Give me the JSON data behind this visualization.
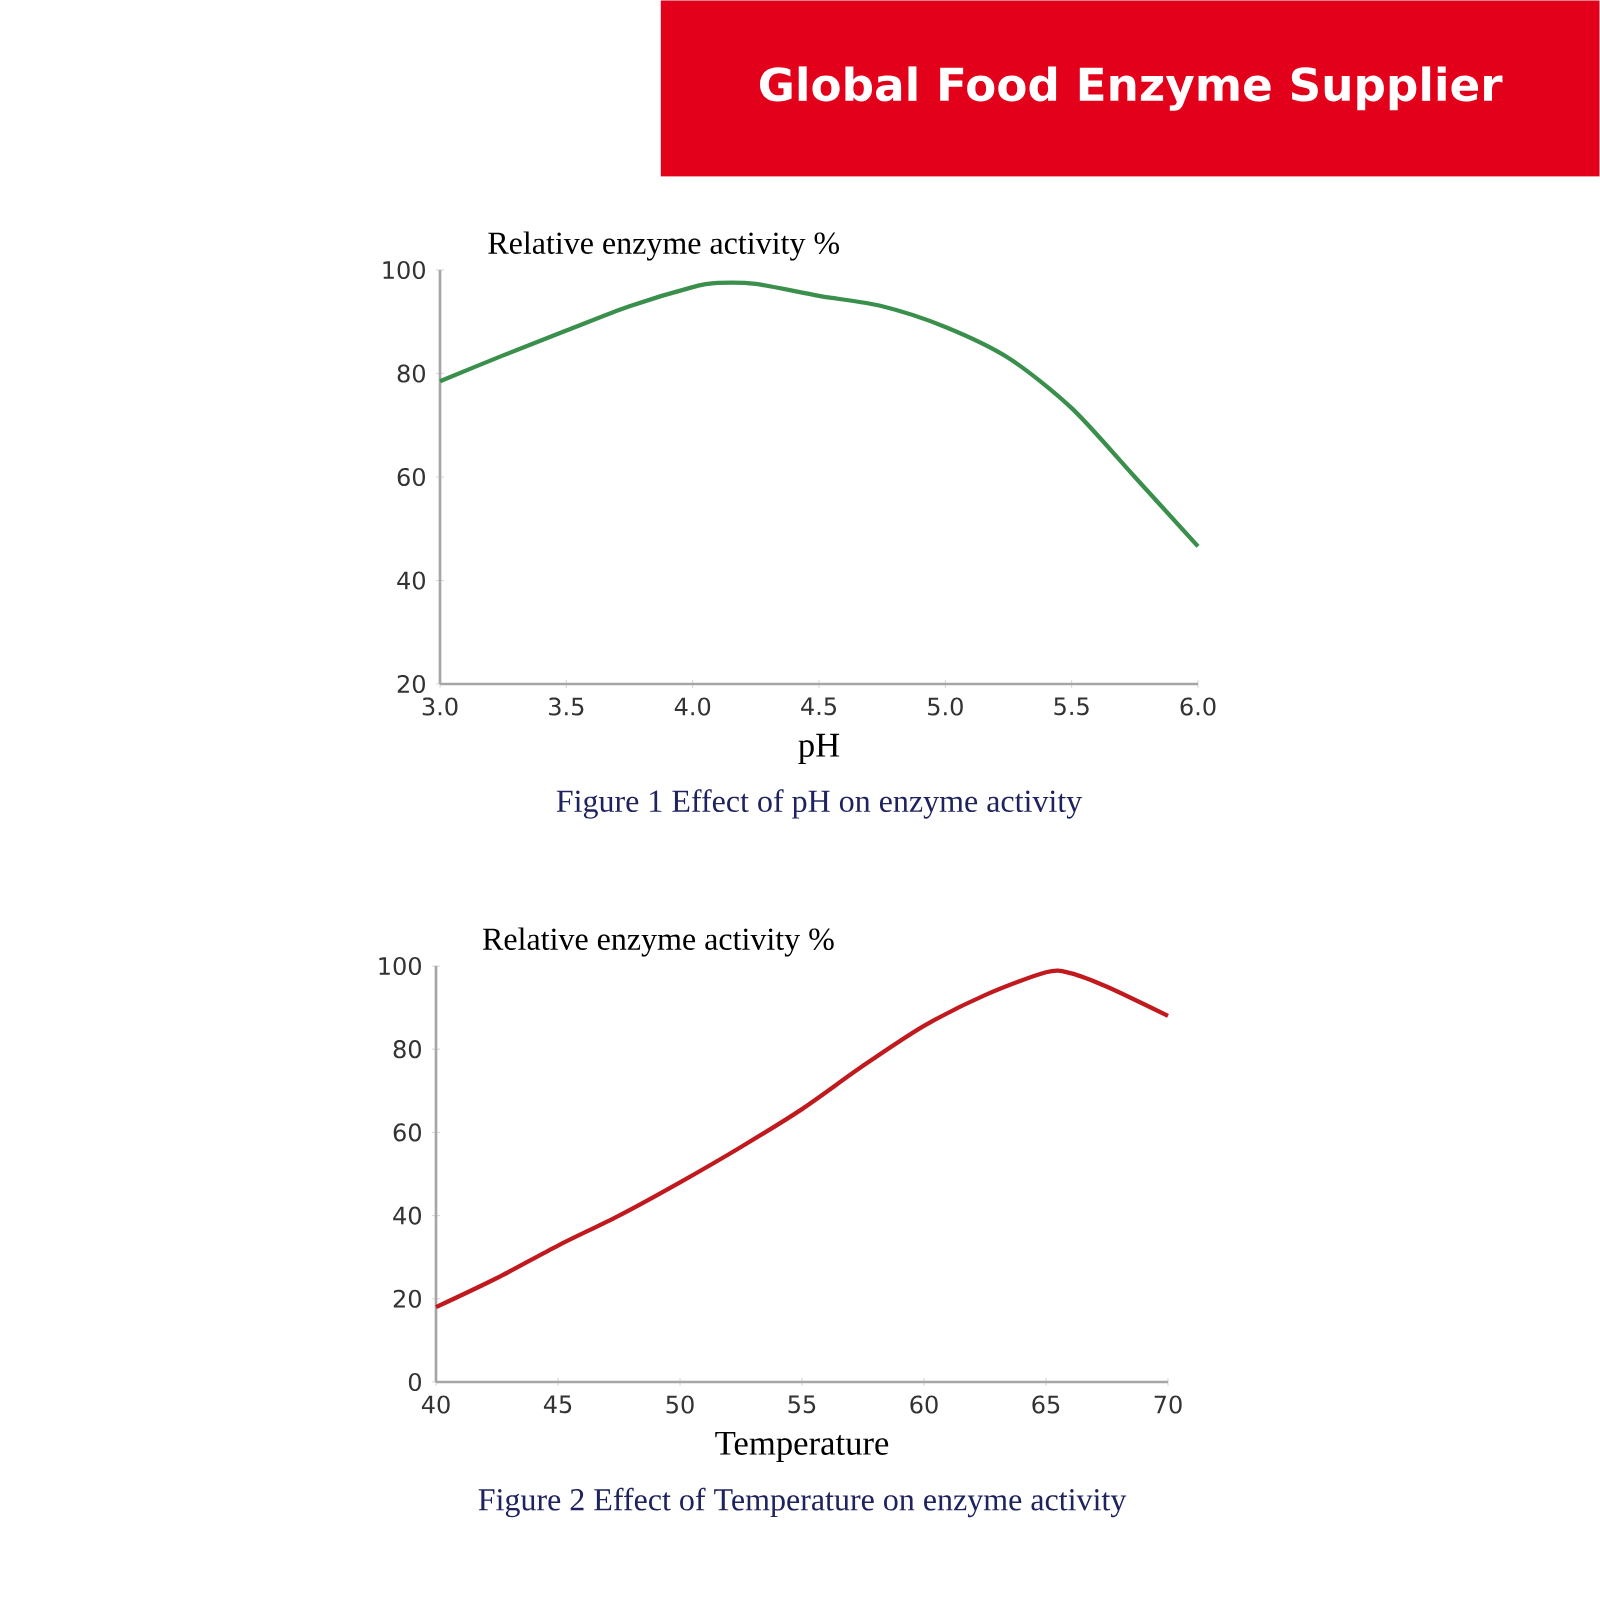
{
  "chart_data": [
    {
      "type": "line",
      "title": "Figure 1   Effect of pH on enzyme activity",
      "xlabel": "pH",
      "ylabel": "Relative enzyme activity %",
      "annotations": [
        "Global Food Enzyme Supplier"
      ],
      "xlim": [
        3.0,
        6.0
      ],
      "ylim": [
        20,
        100
      ],
      "xticks": [
        {
          "value": 3.0,
          "label": "3.0"
        },
        {
          "value": 3.5,
          "label": "3.5"
        },
        {
          "value": 4.0,
          "label": "4.0"
        },
        {
          "value": 4.5,
          "label": "4.5"
        },
        {
          "value": 5.0,
          "label": "5.0"
        },
        {
          "value": 5.5,
          "label": "5.5"
        },
        {
          "value": 6.0,
          "label": "6.0"
        }
      ],
      "yticks": [
        20,
        40,
        60,
        80,
        100
      ],
      "series": [
        {
          "color": "#3a8f4c",
          "x": [
            3.0,
            3.25,
            3.5,
            3.75,
            4.0,
            4.1,
            4.25,
            4.5,
            4.75,
            5.0,
            5.25,
            5.5,
            5.75,
            6.0
          ],
          "values": [
            78.5,
            83.5,
            88.3,
            93,
            96.7,
            97.5,
            97.3,
            95,
            93,
            89,
            83,
            73.3,
            60,
            46.6
          ]
        }
      ]
    },
    {
      "type": "line",
      "title": "Figure 2   Effect of Temperature on enzyme activity",
      "xlabel": "Temperature",
      "ylabel": "Relative enzyme activity %",
      "xlim": [
        40,
        70
      ],
      "ylim": [
        0,
        100
      ],
      "xticks": [
        40,
        45,
        50,
        55,
        60,
        65,
        70
      ],
      "yticks": [
        0,
        20,
        40,
        60,
        80,
        100
      ],
      "series": [
        {
          "color": "#c0191e",
          "x": [
            40,
            42.5,
            45,
            47.5,
            50,
            52.5,
            55,
            57.5,
            60,
            62.5,
            65,
            66,
            67.5,
            70
          ],
          "values": [
            18,
            25,
            32.8,
            40,
            48,
            56.5,
            65.6,
            76,
            85.6,
            93,
            98.5,
            98.3,
            95,
            88
          ]
        }
      ]
    }
  ]
}
